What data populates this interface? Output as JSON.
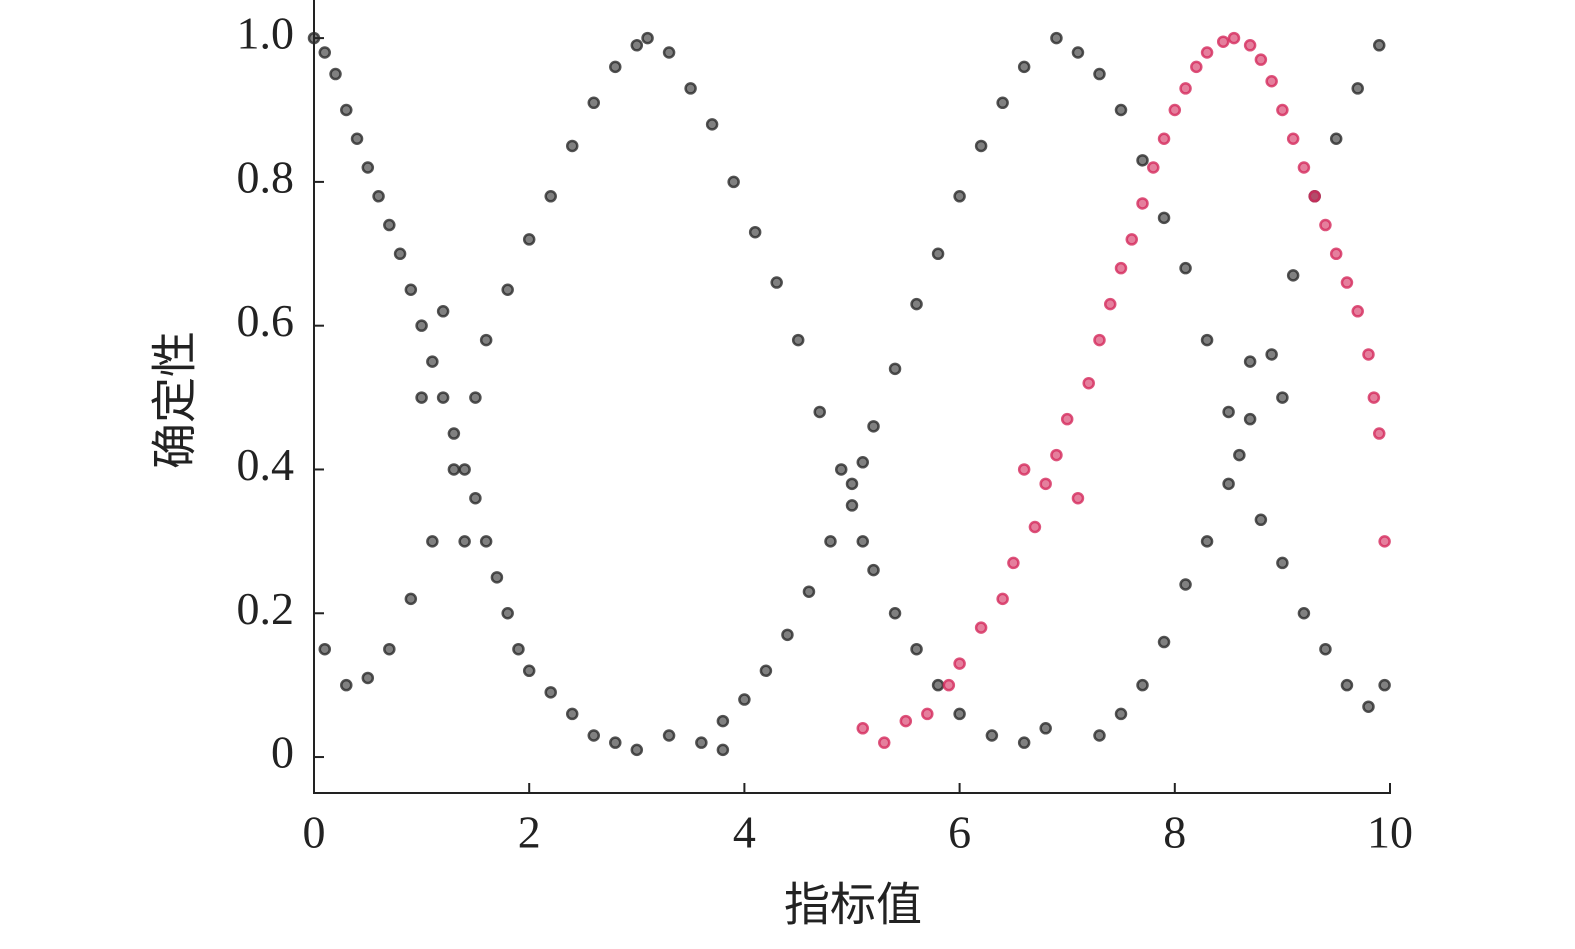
{
  "chart_data": {
    "type": "scatter",
    "xlabel": "指标值",
    "ylabel": "确定性",
    "xlim": [
      0,
      10
    ],
    "ylim": [
      -0.05,
      1.053
    ],
    "xticks": [
      0,
      2,
      4,
      6,
      8,
      10
    ],
    "yticks": [
      0,
      0.2,
      0.4,
      0.6,
      0.8,
      {
        "value": 1.0,
        "label": "1.0"
      }
    ],
    "series": [
      {
        "color": "#2b2b2b",
        "x": [
          0,
          0.1,
          0.2,
          0.3,
          0.4,
          0.5,
          0.6,
          0.7,
          0.8,
          0.9,
          1.0,
          1.1,
          1.2,
          1.3,
          1.4,
          1.5,
          1.6,
          1.7,
          1.8,
          1.9,
          2.0,
          2.2,
          2.4,
          2.6,
          2.8,
          3.0,
          3.3,
          3.6,
          3.8,
          0.1,
          0.3,
          0.5,
          0.7,
          0.9,
          1.1,
          1.3,
          1.5,
          1.6,
          1.8,
          2.0,
          2.2,
          2.4,
          2.6,
          2.8,
          3.0,
          3.1,
          3.3,
          3.5,
          3.7,
          3.9,
          4.1,
          4.3,
          4.5,
          4.7,
          4.9,
          5.0,
          5.1,
          5.2,
          5.4,
          5.6,
          5.8,
          6.0,
          6.3,
          6.6,
          6.8,
          3.8,
          4.0,
          4.2,
          4.4,
          4.6,
          4.8,
          5.0,
          5.2,
          5.4,
          5.6,
          5.8,
          6.0,
          6.2,
          6.4,
          6.6,
          6.9,
          7.1,
          7.3,
          7.5,
          7.7,
          7.9,
          8.1,
          8.3,
          8.5,
          8.6,
          8.8,
          9.0,
          9.2,
          9.4,
          9.6,
          9.8,
          9.95,
          7.3,
          7.5,
          7.7,
          7.9,
          8.1,
          8.3,
          8.5,
          8.7,
          8.9,
          9.1,
          9.3,
          9.5,
          9.7,
          9.9,
          1.2,
          1.0,
          5.1,
          8.7,
          9.0,
          1.4
        ],
        "values": [
          1.0,
          0.98,
          0.95,
          0.9,
          0.86,
          0.82,
          0.78,
          0.74,
          0.7,
          0.65,
          0.6,
          0.55,
          0.5,
          0.45,
          0.4,
          0.36,
          0.3,
          0.25,
          0.2,
          0.15,
          0.12,
          0.09,
          0.06,
          0.03,
          0.02,
          0.01,
          0.03,
          0.02,
          0.01,
          0.15,
          0.1,
          0.11,
          0.15,
          0.22,
          0.3,
          0.4,
          0.5,
          0.58,
          0.65,
          0.72,
          0.78,
          0.85,
          0.91,
          0.96,
          0.99,
          1.0,
          0.98,
          0.93,
          0.88,
          0.8,
          0.73,
          0.66,
          0.58,
          0.48,
          0.4,
          0.35,
          0.3,
          0.26,
          0.2,
          0.15,
          0.1,
          0.06,
          0.03,
          0.02,
          0.04,
          0.05,
          0.08,
          0.12,
          0.17,
          0.23,
          0.3,
          0.38,
          0.46,
          0.54,
          0.63,
          0.7,
          0.78,
          0.85,
          0.91,
          0.96,
          1.0,
          0.98,
          0.95,
          0.9,
          0.83,
          0.75,
          0.68,
          0.58,
          0.48,
          0.42,
          0.33,
          0.27,
          0.2,
          0.15,
          0.1,
          0.07,
          0.1,
          0.03,
          0.06,
          0.1,
          0.16,
          0.24,
          0.3,
          0.38,
          0.47,
          0.56,
          0.67,
          0.78,
          0.86,
          0.93,
          0.99,
          0.62,
          0.5,
          0.41,
          0.55,
          0.5,
          0.3
        ]
      },
      {
        "color": "#d42a5c",
        "x": [
          5.1,
          5.3,
          5.5,
          5.7,
          5.9,
          6.0,
          6.2,
          6.4,
          6.5,
          6.7,
          6.8,
          6.9,
          7.0,
          7.2,
          7.3,
          7.4,
          7.5,
          7.6,
          7.7,
          7.8,
          7.9,
          8.0,
          8.1,
          8.2,
          8.3,
          8.45,
          8.55,
          8.7,
          8.8,
          8.9,
          9.0,
          9.1,
          9.2,
          9.3,
          9.4,
          9.5,
          9.6,
          9.7,
          9.8,
          9.85,
          9.9,
          9.95,
          6.6,
          7.1
        ],
        "values": [
          0.04,
          0.02,
          0.05,
          0.06,
          0.1,
          0.13,
          0.18,
          0.22,
          0.27,
          0.32,
          0.38,
          0.42,
          0.47,
          0.52,
          0.58,
          0.63,
          0.68,
          0.72,
          0.77,
          0.82,
          0.86,
          0.9,
          0.93,
          0.96,
          0.98,
          0.995,
          1.0,
          0.99,
          0.97,
          0.94,
          0.9,
          0.86,
          0.82,
          0.78,
          0.74,
          0.7,
          0.66,
          0.62,
          0.56,
          0.5,
          0.45,
          0.3,
          0.4,
          0.36
        ]
      }
    ]
  }
}
